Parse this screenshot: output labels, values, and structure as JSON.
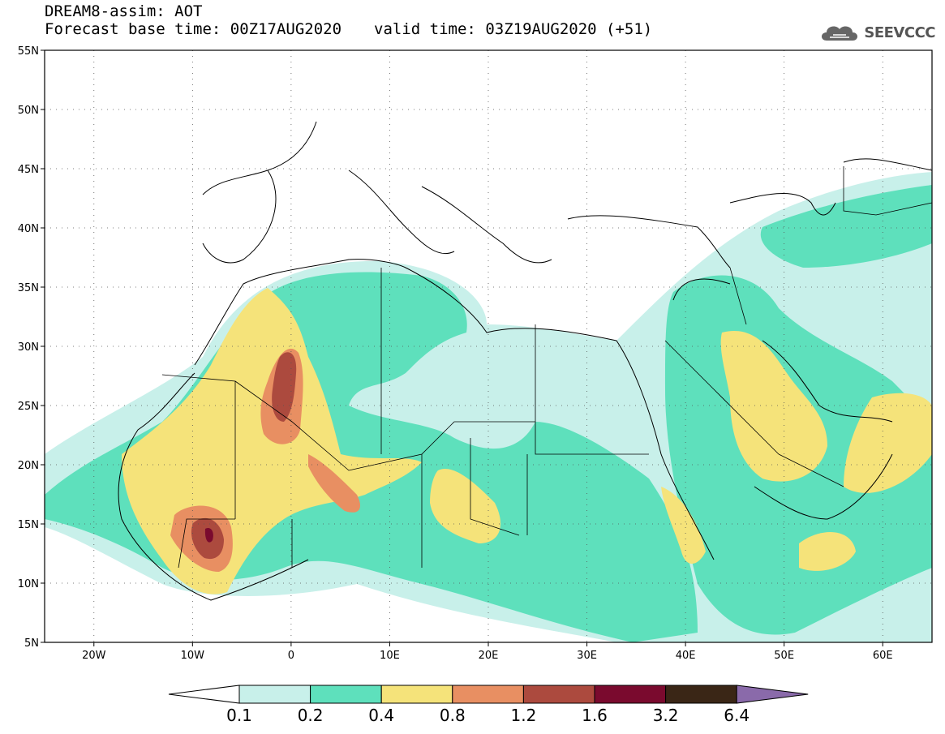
{
  "header": {
    "title": "DREAM8-assim: AOT",
    "base_time": "Forecast base time: 00Z17AUG2020",
    "valid_time": "valid time: 03Z19AUG2020 (+51)"
  },
  "logo": {
    "text": "SEEVCCC",
    "icon": "cloud-logo-icon"
  },
  "map": {
    "lon_range": [
      -25,
      65
    ],
    "lat_range": [
      5,
      55
    ],
    "lat_ticks": [
      {
        "value": 55,
        "label": "55N"
      },
      {
        "value": 50,
        "label": "50N"
      },
      {
        "value": 45,
        "label": "45N"
      },
      {
        "value": 40,
        "label": "40N"
      },
      {
        "value": 35,
        "label": "35N"
      },
      {
        "value": 30,
        "label": "30N"
      },
      {
        "value": 25,
        "label": "25N"
      },
      {
        "value": 20,
        "label": "20N"
      },
      {
        "value": 15,
        "label": "15N"
      },
      {
        "value": 10,
        "label": "10N"
      },
      {
        "value": 5,
        "label": "5N"
      }
    ],
    "lon_ticks": [
      {
        "value": -20,
        "label": "20W"
      },
      {
        "value": -10,
        "label": "10W"
      },
      {
        "value": 0,
        "label": "0"
      },
      {
        "value": 10,
        "label": "10E"
      },
      {
        "value": 20,
        "label": "20E"
      },
      {
        "value": 30,
        "label": "30E"
      },
      {
        "value": 40,
        "label": "40E"
      },
      {
        "value": 50,
        "label": "50E"
      },
      {
        "value": 60,
        "label": "60E"
      }
    ],
    "grid": true
  },
  "colorbar": {
    "levels": [
      "0.1",
      "0.2",
      "0.4",
      "0.8",
      "1.2",
      "1.6",
      "3.2",
      "6.4"
    ],
    "colors": [
      "#c8f0ea",
      "#5ee0bc",
      "#f5e37a",
      "#e88f62",
      "#ac4a3e",
      "#7a0a2e",
      "#3a2616",
      "#8a6aaa"
    ],
    "low_color": "#ffffff",
    "high_color": "#8a6aaa"
  }
}
